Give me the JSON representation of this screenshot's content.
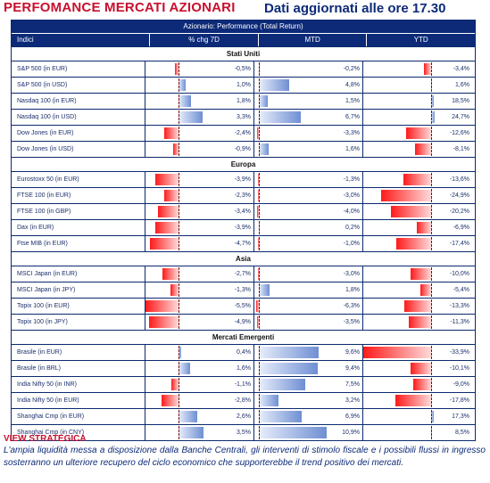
{
  "title_left": "PERFOMANCE MERCATI AZIONARI",
  "title_right": "Dati aggiornati alle ore 17.30",
  "table_header": "Azionario: Performance (Total Return)",
  "columns": [
    "Indici",
    "% chg 7D",
    "MTD",
    "YTD"
  ],
  "bar_colors": {
    "positive": "#6f8fd3",
    "negative": "#ff1a1a"
  },
  "columns_scale": {
    "d7": {
      "zero_frac": 0.3,
      "scale": 5.5
    },
    "mtd": {
      "zero_frac": 0.04,
      "scale": 11
    },
    "ytd": {
      "zero_frac": 0.62,
      "scale": 34
    }
  },
  "sections": [
    {
      "name": "Stati Uniti",
      "rows": [
        {
          "name": "S&P 500 (in EUR)",
          "d7": -0.5,
          "mtd": -0.2,
          "ytd": -3.4,
          "d7_label": "-0,5%",
          "mtd_label": "-0,2%",
          "ytd_label": "-3,4%"
        },
        {
          "name": "S&P 500 (in USD)",
          "d7": 1.0,
          "mtd": 4.8,
          "ytd": 1.6,
          "d7_label": "1,0%",
          "mtd_label": "4,8%",
          "ytd_label": "1,6%"
        },
        {
          "name": "Nasdaq 100 (in EUR)",
          "d7": 1.8,
          "mtd": 1.5,
          "ytd": 18.5,
          "d7_label": "1,8%",
          "mtd_label": "1,5%",
          "ytd_label": "18,5%"
        },
        {
          "name": "Nasdaq 100 (in USD)",
          "d7": 3.3,
          "mtd": 6.7,
          "ytd": 24.7,
          "d7_label": "3,3%",
          "mtd_label": "6,7%",
          "ytd_label": "24,7%"
        },
        {
          "name": "Dow Jones (in EUR)",
          "d7": -2.4,
          "mtd": -3.3,
          "ytd": -12.6,
          "d7_label": "-2,4%",
          "mtd_label": "-3,3%",
          "ytd_label": "-12,6%"
        },
        {
          "name": "Dow Jones (in USD)",
          "d7": -0.9,
          "mtd": 1.6,
          "ytd": -8.1,
          "d7_label": "-0,9%",
          "mtd_label": "1,6%",
          "ytd_label": "-8,1%"
        }
      ]
    },
    {
      "name": "Europa",
      "rows": [
        {
          "name": "Eurostoxx 50 (in EUR)",
          "d7": -3.9,
          "mtd": -1.3,
          "ytd": -13.6,
          "d7_label": "-3,9%",
          "mtd_label": "-1,3%",
          "ytd_label": "-13,6%"
        },
        {
          "name": "FTSE 100 (in EUR)",
          "d7": -2.3,
          "mtd": -3.0,
          "ytd": -24.9,
          "d7_label": "-2,3%",
          "mtd_label": "-3,0%",
          "ytd_label": "-24,9%"
        },
        {
          "name": "FTSE 100 (in GBP)",
          "d7": -3.4,
          "mtd": -4.0,
          "ytd": -20.2,
          "d7_label": "-3,4%",
          "mtd_label": "-4,0%",
          "ytd_label": "-20,2%"
        },
        {
          "name": "Dax (in EUR)",
          "d7": -3.9,
          "mtd": 0.2,
          "ytd": -6.9,
          "d7_label": "-3,9%",
          "mtd_label": "0,2%",
          "ytd_label": "-6,9%"
        },
        {
          "name": "Ftse MIB (in EUR)",
          "d7": -4.7,
          "mtd": -1.0,
          "ytd": -17.4,
          "d7_label": "-4,7%",
          "mtd_label": "-1,0%",
          "ytd_label": "-17,4%"
        }
      ]
    },
    {
      "name": "Asia",
      "rows": [
        {
          "name": "MSCI Japan (in EUR)",
          "d7": -2.7,
          "mtd": -3.0,
          "ytd": -10.0,
          "d7_label": "-2,7%",
          "mtd_label": "-3,0%",
          "ytd_label": "-10,0%"
        },
        {
          "name": "MSCI Japan (in JPY)",
          "d7": -1.3,
          "mtd": 1.8,
          "ytd": -5.4,
          "d7_label": "-1,3%",
          "mtd_label": "1,8%",
          "ytd_label": "-5,4%"
        },
        {
          "name": "Topix 100 (in EUR)",
          "d7": -5.5,
          "mtd": -6.3,
          "ytd": -13.3,
          "d7_label": "-5,5%",
          "mtd_label": "-6,3%",
          "ytd_label": "-13,3%"
        },
        {
          "name": "Topix 100 (in JPY)",
          "d7": -4.9,
          "mtd": -3.5,
          "ytd": -11.3,
          "d7_label": "-4,9%",
          "mtd_label": "-3,5%",
          "ytd_label": "-11,3%"
        }
      ]
    },
    {
      "name": "Mercati Emergenti",
      "rows": [
        {
          "name": "Brasile (in EUR)",
          "d7": 0.4,
          "mtd": 9.6,
          "ytd": -33.9,
          "d7_label": "0,4%",
          "mtd_label": "9,6%",
          "ytd_label": "-33,9%"
        },
        {
          "name": "Brasile (in BRL)",
          "d7": 1.6,
          "mtd": 9.4,
          "ytd": -10.1,
          "d7_label": "1,6%",
          "mtd_label": "9,4%",
          "ytd_label": "-10,1%"
        },
        {
          "name": "India Nifty 50 (in INR)",
          "d7": -1.1,
          "mtd": 7.5,
          "ytd": -9.0,
          "d7_label": "-1,1%",
          "mtd_label": "7,5%",
          "ytd_label": "-9,0%"
        },
        {
          "name": "India Nifty 50 (in EUR)",
          "d7": -2.8,
          "mtd": 3.2,
          "ytd": -17.8,
          "d7_label": "-2,8%",
          "mtd_label": "3,2%",
          "ytd_label": "-17,8%"
        },
        {
          "name": "Shanghai Cmp (in EUR)",
          "d7": 2.6,
          "mtd": 6.9,
          "ytd": 17.3,
          "d7_label": "2,6%",
          "mtd_label": "6,9%",
          "ytd_label": "17,3%"
        },
        {
          "name": "Shanghai Cmp (in CNY)",
          "d7": 3.5,
          "mtd": 10.9,
          "ytd": 8.5,
          "d7_label": "3,5%",
          "mtd_label": "10,9%",
          "ytd_label": "8,5%"
        }
      ]
    }
  ],
  "view_strategica": {
    "title": "VIEW STRATEGICA",
    "text": "L'ampia liquidità messa a disposizione dalla Banche Centrali, gli interventi di stimolo fiscale e i possibili flussi in ingresso sosterranno  un ulteriore recupero del ciclo economico che supporterebbe il trend positivo dei mercati."
  }
}
